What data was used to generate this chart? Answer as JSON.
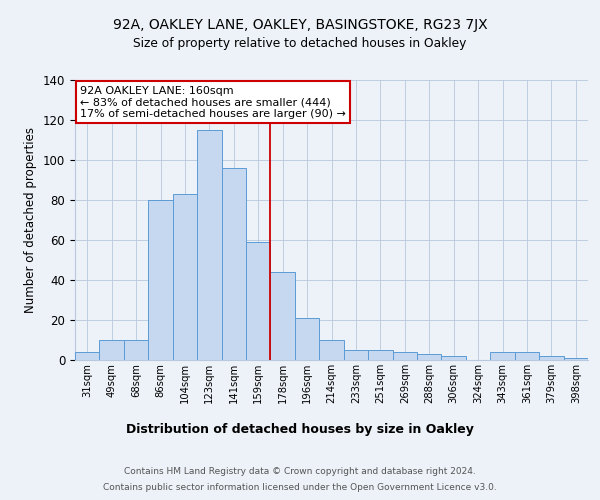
{
  "title1": "92A, OAKLEY LANE, OAKLEY, BASINGSTOKE, RG23 7JX",
  "title2": "Size of property relative to detached houses in Oakley",
  "xlabel": "Distribution of detached houses by size in Oakley",
  "ylabel": "Number of detached properties",
  "categories": [
    "31sqm",
    "49sqm",
    "68sqm",
    "86sqm",
    "104sqm",
    "123sqm",
    "141sqm",
    "159sqm",
    "178sqm",
    "196sqm",
    "214sqm",
    "233sqm",
    "251sqm",
    "269sqm",
    "288sqm",
    "306sqm",
    "324sqm",
    "343sqm",
    "361sqm",
    "379sqm",
    "398sqm"
  ],
  "values": [
    4,
    10,
    10,
    80,
    83,
    115,
    96,
    59,
    44,
    21,
    10,
    5,
    5,
    4,
    3,
    2,
    0,
    4,
    4,
    2,
    1
  ],
  "bar_color": "#c5d8ef",
  "bar_edge_color": "#5b9bd5",
  "vline_index": 7,
  "vline_color": "#cc0000",
  "annotation_text": "92A OAKLEY LANE: 160sqm\n← 83% of detached houses are smaller (444)\n17% of semi-detached houses are larger (90) →",
  "annotation_box_edge": "#cc0000",
  "footer1": "Contains HM Land Registry data © Crown copyright and database right 2024.",
  "footer2": "Contains public sector information licensed under the Open Government Licence v3.0.",
  "ylim": [
    0,
    140
  ],
  "background_color": "#edf1f8"
}
